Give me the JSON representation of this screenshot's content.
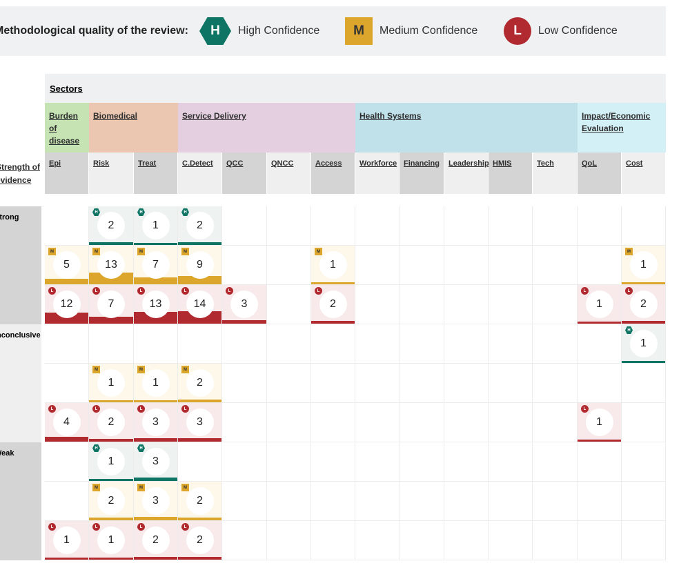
{
  "legend": {
    "title": "Methodological quality of the review:",
    "high": {
      "symbol": "H",
      "label": "High Confidence",
      "color": "#0e7565"
    },
    "medium": {
      "symbol": "M",
      "label": "Medium Confidence",
      "color": "#dba62b"
    },
    "low": {
      "symbol": "L",
      "label": "Low Confidence",
      "color": "#b02a30"
    }
  },
  "sectors_label": "Sectors",
  "strength_label": "Strength of evidence",
  "sectors": [
    {
      "label": "Burden of disease",
      "color": "#c5e3b3",
      "span": 1
    },
    {
      "label": "Biomedical",
      "color": "#ebc7b2",
      "span": 2
    },
    {
      "label": "Service Delivery",
      "color": "#e3cfe0",
      "span": 4
    },
    {
      "label": "Health Systems",
      "color": "#c0e1ea",
      "span": 5
    },
    {
      "label": "Impact/Economic Evaluation",
      "color": "#d3f0f6",
      "span": 2
    }
  ],
  "columns": [
    "Epi",
    "Risk",
    "Treat",
    "C.Detect",
    "QCC",
    "QNCC",
    "Access",
    "Workforce",
    "Financing",
    "Leadership",
    "HMIS",
    "Tech",
    "QoL",
    "Cost"
  ],
  "strength_groups": [
    {
      "label": "Strong",
      "rows": [
        {
          "level": "H",
          "cells": [
            null,
            2,
            1,
            2,
            null,
            null,
            null,
            null,
            null,
            null,
            null,
            null,
            null,
            null
          ]
        },
        {
          "level": "M",
          "cells": [
            5,
            13,
            7,
            9,
            null,
            null,
            1,
            null,
            null,
            null,
            null,
            null,
            null,
            1
          ]
        },
        {
          "level": "L",
          "cells": [
            12,
            7,
            13,
            14,
            3,
            null,
            2,
            null,
            null,
            null,
            null,
            null,
            1,
            2
          ]
        }
      ]
    },
    {
      "label": "Inconclusive",
      "rows": [
        {
          "level": "H",
          "cells": [
            null,
            null,
            null,
            null,
            null,
            null,
            null,
            null,
            null,
            null,
            null,
            null,
            null,
            1
          ]
        },
        {
          "level": "M",
          "cells": [
            null,
            1,
            1,
            2,
            null,
            null,
            null,
            null,
            null,
            null,
            null,
            null,
            null,
            null
          ]
        },
        {
          "level": "L",
          "cells": [
            4,
            2,
            3,
            3,
            null,
            null,
            null,
            null,
            null,
            null,
            null,
            null,
            1,
            null
          ]
        }
      ]
    },
    {
      "label": "Weak",
      "rows": [
        {
          "level": "H",
          "cells": [
            null,
            1,
            3,
            null,
            null,
            null,
            null,
            null,
            null,
            null,
            null,
            null,
            null,
            null
          ]
        },
        {
          "level": "M",
          "cells": [
            null,
            2,
            3,
            2,
            null,
            null,
            null,
            null,
            null,
            null,
            null,
            null,
            null,
            null
          ]
        },
        {
          "level": "L",
          "cells": [
            1,
            1,
            2,
            2,
            null,
            null,
            null,
            null,
            null,
            null,
            null,
            null,
            null,
            null
          ]
        }
      ]
    }
  ]
}
